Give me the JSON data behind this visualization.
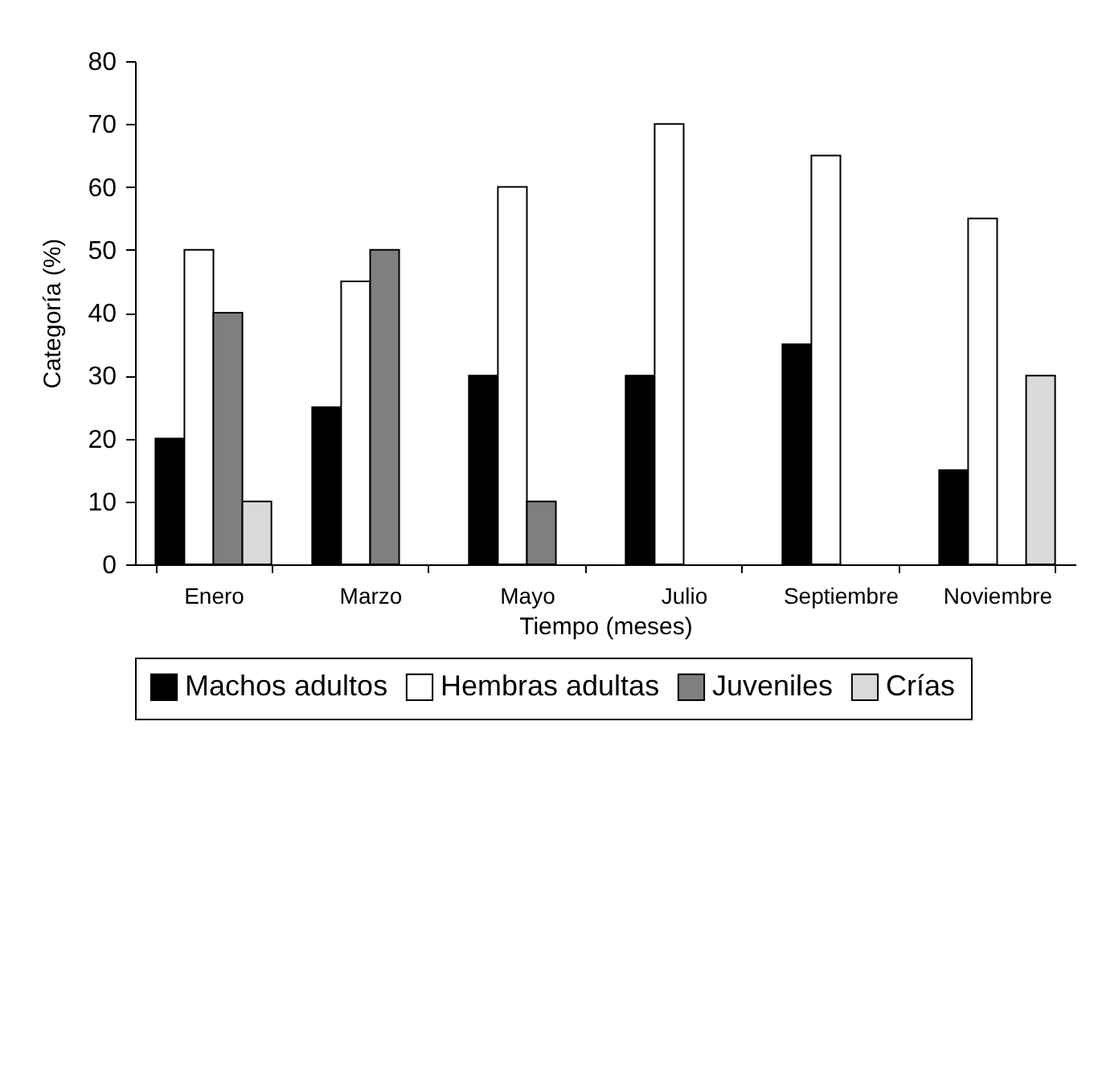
{
  "chart_data": {
    "type": "bar",
    "xlabel": "Tiempo (meses)",
    "ylabel": "Categoría (%)",
    "categories": [
      "Enero",
      "Marzo",
      "Mayo",
      "Julio",
      "Septiembre",
      "Noviembre"
    ],
    "series": [
      {
        "name": "Machos adultos",
        "color": "#000000",
        "values": [
          20,
          25,
          30,
          30,
          35,
          15
        ]
      },
      {
        "name": "Hembras adultas",
        "color": "#ffffff",
        "values": [
          50,
          45,
          60,
          70,
          65,
          55
        ]
      },
      {
        "name": "Juveniles",
        "color": "#7f7f7f",
        "values": [
          40,
          50,
          10,
          null,
          null,
          null
        ]
      },
      {
        "name": "Crías",
        "color": "#d9d9d9",
        "values": [
          10,
          null,
          null,
          null,
          null,
          30
        ]
      }
    ],
    "ylim": [
      0,
      80
    ],
    "yticks": [
      0,
      10,
      20,
      30,
      40,
      50,
      60,
      70,
      80
    ],
    "grid": false,
    "legend": "bottom"
  }
}
